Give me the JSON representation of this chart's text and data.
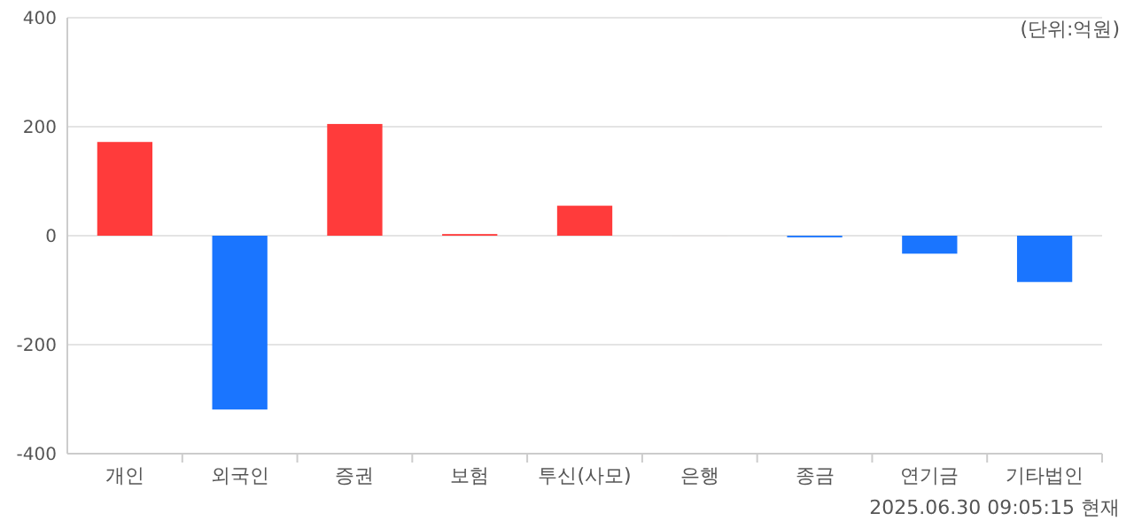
{
  "chart_data": {
    "type": "bar",
    "categories": [
      "개인",
      "외국인",
      "증권",
      "보험",
      "투신(사모)",
      "은행",
      "종금",
      "연기금",
      "기타법인"
    ],
    "values": [
      172,
      -319,
      205,
      3,
      55,
      0,
      -3,
      -33,
      -85
    ],
    "colors": [
      "#ff3b3b",
      "#1a75ff",
      "#ff3b3b",
      "#ff3b3b",
      "#ff3b3b",
      "#ff3b3b",
      "#1a75ff",
      "#1a75ff",
      "#1a75ff"
    ],
    "ylim": [
      -400,
      400
    ],
    "yticks": [
      400,
      200,
      0,
      -200,
      -400
    ],
    "grid": "y",
    "annotations": [
      "(단위:억원)",
      "2025.06.30 09:05:15 현재"
    ]
  }
}
